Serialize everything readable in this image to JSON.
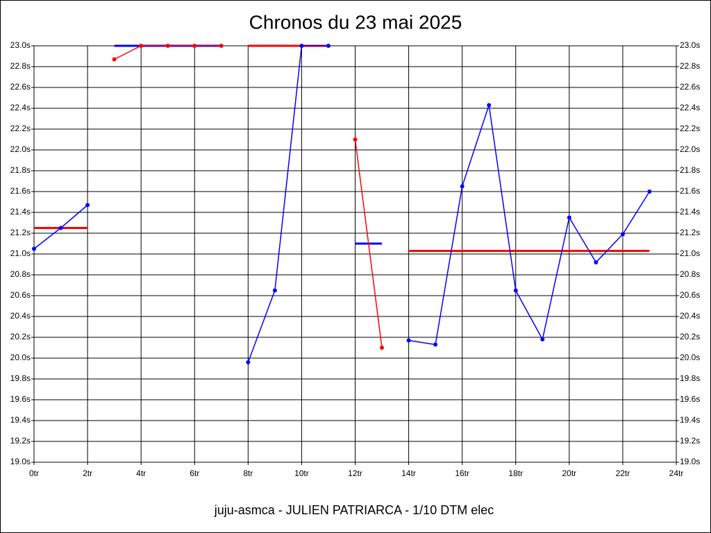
{
  "chart_data": {
    "type": "line",
    "title": "Chronos du 23 mai 2025",
    "footer": "juju-asmca - JULIEN PATRIARCA - 1/10 DTM elec",
    "x": [
      0,
      1,
      2,
      3,
      4,
      5,
      6,
      7,
      8,
      9,
      10,
      11,
      12,
      13,
      14,
      15,
      16,
      17,
      18,
      19,
      20,
      21,
      22,
      23
    ],
    "series": [
      {
        "color": "#0000ff",
        "values": [
          21.05,
          21.25,
          21.47,
          null,
          null,
          null,
          null,
          null,
          null,
          null,
          null,
          null,
          null,
          null,
          null,
          null,
          null,
          null,
          null,
          null,
          null,
          null,
          null,
          null
        ]
      },
      {
        "color": "#ff0000",
        "values": [
          null,
          null,
          null,
          22.87,
          23.0,
          23.0,
          23.0,
          23.0,
          null,
          null,
          null,
          null,
          null,
          null,
          null,
          null,
          null,
          null,
          null,
          null,
          null,
          null,
          null,
          null
        ]
      },
      {
        "color": "#0000ff",
        "values": [
          null,
          null,
          null,
          null,
          null,
          null,
          null,
          null,
          19.96,
          20.65,
          23.0,
          23.0,
          null,
          null,
          null,
          null,
          null,
          null,
          null,
          null,
          null,
          null,
          null,
          null
        ]
      },
      {
        "color": "#ff0000",
        "values": [
          null,
          null,
          null,
          null,
          null,
          null,
          null,
          null,
          null,
          null,
          null,
          null,
          22.1,
          20.1,
          null,
          null,
          null,
          null,
          null,
          null,
          null,
          null,
          null,
          null
        ]
      },
      {
        "color": "#0000ff",
        "values": [
          null,
          null,
          null,
          null,
          null,
          null,
          null,
          null,
          null,
          null,
          null,
          null,
          null,
          null,
          20.17,
          20.13,
          21.65,
          22.43,
          20.65,
          20.18,
          21.35,
          20.92,
          21.19,
          21.6
        ]
      }
    ],
    "reference_lines": [
      {
        "x": [
          0,
          2
        ],
        "y": 21.25,
        "color": "#ff0000"
      },
      {
        "x": [
          3,
          7
        ],
        "y": 23.0,
        "color": "#0000ff"
      },
      {
        "x": [
          8,
          11
        ],
        "y": 23.0,
        "color": "#ff0000"
      },
      {
        "x": [
          12,
          13
        ],
        "y": 21.1,
        "color": "#0000ff"
      },
      {
        "x": [
          14,
          23
        ],
        "y": 21.03,
        "color": "#ff0000"
      }
    ],
    "xlim": [
      0,
      24
    ],
    "xticks": [
      {
        "value": 0,
        "label": "0tr"
      },
      {
        "value": 2,
        "label": "2tr"
      },
      {
        "value": 4,
        "label": "4tr"
      },
      {
        "value": 6,
        "label": "6tr"
      },
      {
        "value": 8,
        "label": "8tr"
      },
      {
        "value": 10,
        "label": "10tr"
      },
      {
        "value": 12,
        "label": "12tr"
      },
      {
        "value": 14,
        "label": "14tr"
      },
      {
        "value": 16,
        "label": "16tr"
      },
      {
        "value": 18,
        "label": "18tr"
      },
      {
        "value": 20,
        "label": "20tr"
      },
      {
        "value": 22,
        "label": "22tr"
      },
      {
        "value": 24,
        "label": "24tr"
      }
    ],
    "ylim": [
      19.0,
      23.0
    ],
    "yticks": [
      {
        "value": 19.0,
        "label": "19.0s"
      },
      {
        "value": 19.2,
        "label": "19.2s"
      },
      {
        "value": 19.4,
        "label": "19.4s"
      },
      {
        "value": 19.6,
        "label": "19.6s"
      },
      {
        "value": 19.8,
        "label": "19.8s"
      },
      {
        "value": 20.0,
        "label": "20.0s"
      },
      {
        "value": 20.2,
        "label": "20.2s"
      },
      {
        "value": 20.4,
        "label": "20.4s"
      },
      {
        "value": 20.6,
        "label": "20.6s"
      },
      {
        "value": 20.8,
        "label": "20.8s"
      },
      {
        "value": 21.0,
        "label": "21.0s"
      },
      {
        "value": 21.2,
        "label": "21.2s"
      },
      {
        "value": 21.4,
        "label": "21.4s"
      },
      {
        "value": 21.6,
        "label": "21.6s"
      },
      {
        "value": 21.8,
        "label": "21.8s"
      },
      {
        "value": 22.0,
        "label": "22.0s"
      },
      {
        "value": 22.2,
        "label": "22.2s"
      },
      {
        "value": 22.4,
        "label": "22.4s"
      },
      {
        "value": 22.6,
        "label": "22.6s"
      },
      {
        "value": 22.8,
        "label": "22.8s"
      },
      {
        "value": 23.0,
        "label": "23.0s"
      }
    ],
    "grid": true
  }
}
